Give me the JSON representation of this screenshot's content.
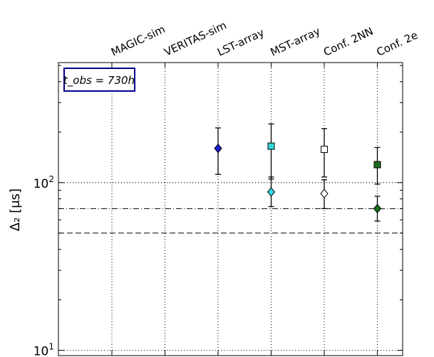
{
  "chart_data": {
    "type": "scatter",
    "title": "",
    "xlabel": "",
    "ylabel": "Δ₂ [μs]",
    "y_scale": "log",
    "ylim": [
      9.3,
      520
    ],
    "grid": true,
    "annotation": "t_obs = 730h",
    "categories": [
      "MAGIC-sim",
      "VERITAS-sim",
      "LST-array",
      "MST-array",
      "Conf. 2NN",
      "Conf. 2e"
    ],
    "ytick_labels": [
      {
        "value": 10,
        "base": "10",
        "exp": "1"
      },
      {
        "value": 100,
        "base": "10",
        "exp": "2"
      }
    ],
    "reference_lines": [
      {
        "value": 100,
        "style": "dotted"
      },
      {
        "value": 70,
        "style": "dashdot"
      },
      {
        "value": 50,
        "style": "dashed"
      }
    ],
    "points": [
      {
        "category": "LST-array",
        "value": 160,
        "low": 112,
        "high": 212,
        "marker": "diamond",
        "fill": "#1a1acc"
      },
      {
        "category": "MST-array",
        "value": 165,
        "low": 105,
        "high": 224,
        "marker": "square",
        "fill": "#33d8dc"
      },
      {
        "category": "MST-array",
        "value": 88,
        "low": 72,
        "high": 108,
        "marker": "diamond",
        "fill": "#33d8dc"
      },
      {
        "category": "Conf. 2NN",
        "value": 158,
        "low": 108,
        "high": 210,
        "marker": "square",
        "fill": "#ffffff"
      },
      {
        "category": "Conf. 2NN",
        "value": 86,
        "low": 70,
        "high": 104,
        "marker": "diamond",
        "fill": "#ffffff"
      },
      {
        "category": "Conf. 2e",
        "value": 128,
        "low": 98,
        "high": 162,
        "marker": "square",
        "fill": "#1c6e1c"
      },
      {
        "category": "Conf. 2e",
        "value": 70,
        "low": 59,
        "high": 83,
        "marker": "diamond",
        "fill": "#1c6e1c"
      }
    ],
    "colors": {
      "legend_border": "#00008b",
      "axis": "#000000"
    }
  }
}
